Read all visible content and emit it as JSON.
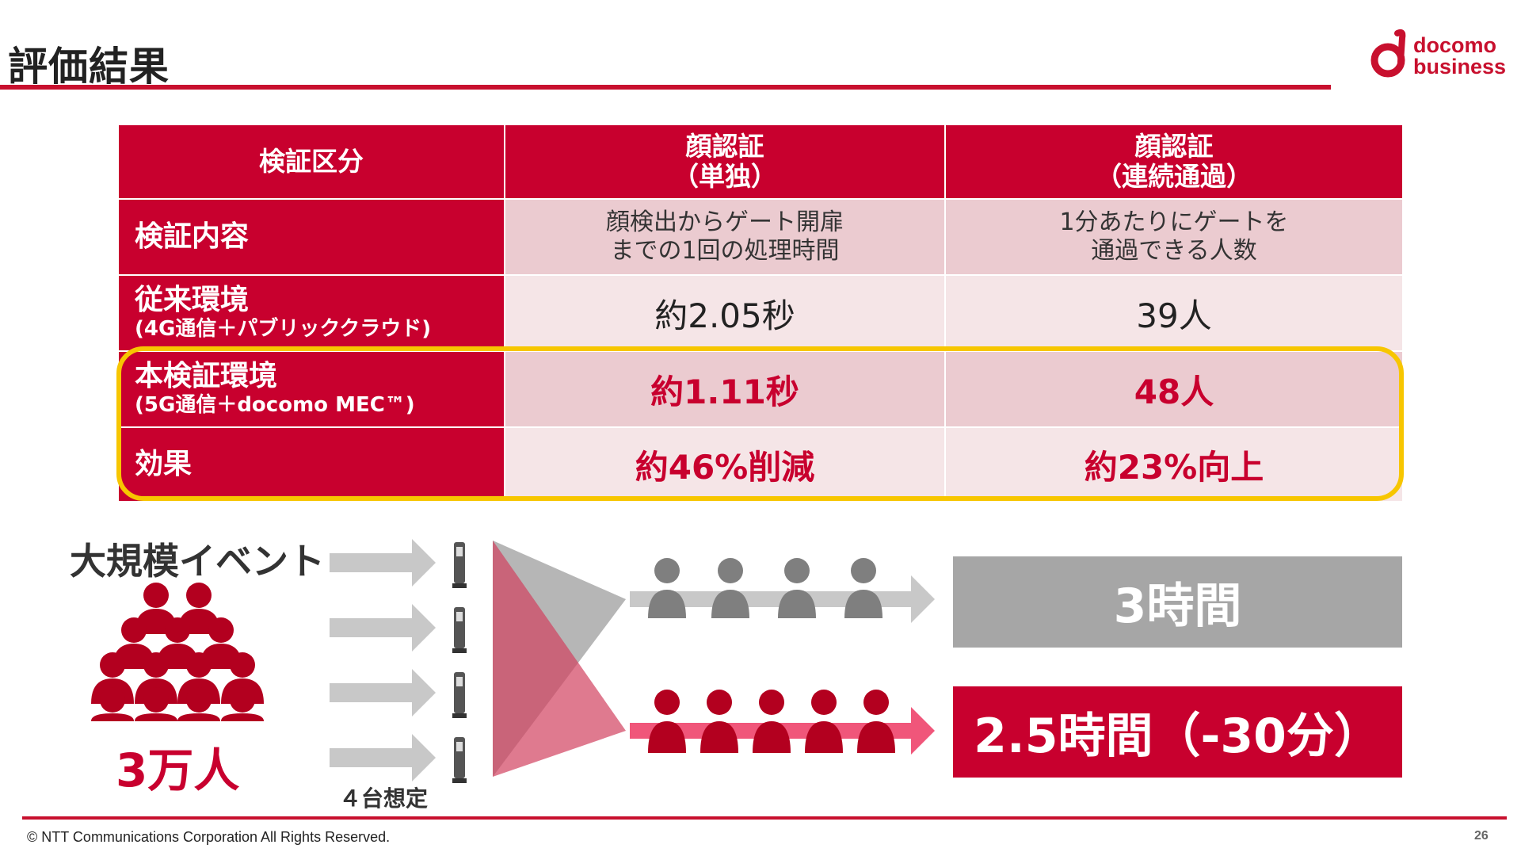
{
  "header": {
    "title": "評価結果",
    "logo_line1": "docomo",
    "logo_line2": "business"
  },
  "table": {
    "headers": [
      "検証区分",
      "顔認証\n（単独）",
      "顔認証\n（連続通過）"
    ],
    "rows": [
      {
        "label": "検証内容",
        "sublabel": "",
        "col1": "顔検出からゲート開扉\nまでの1回の処理時間",
        "col2": "1分あたりにゲートを\n通過できる人数"
      },
      {
        "label": "従来環境",
        "sublabel": "(4G通信＋パブリッククラウド)",
        "col1": "約2.05秒",
        "col2": "39人"
      },
      {
        "label": "本検証環境",
        "sublabel": "(5G通信＋docomo MEC™)",
        "col1": "約1.11秒",
        "col2": "48人"
      },
      {
        "label": "効果",
        "sublabel": "",
        "col1": "約46%削減",
        "col2": "約23%向上"
      }
    ]
  },
  "infographic": {
    "event_label": "大規模イベント",
    "crowd_count": "3万人",
    "gate_label": "４台想定",
    "result_before": "3時間",
    "result_after": "2.5時間（-30分）"
  },
  "footer": {
    "copyright": "© NTT Communications Corporation All Rights Reserved.",
    "page_number": "26"
  },
  "colors": {
    "brand_red": "#c8002e",
    "highlight_yellow": "#f7c600",
    "gray": "#a6a6a6",
    "pink_arrow": "#f0567a"
  }
}
